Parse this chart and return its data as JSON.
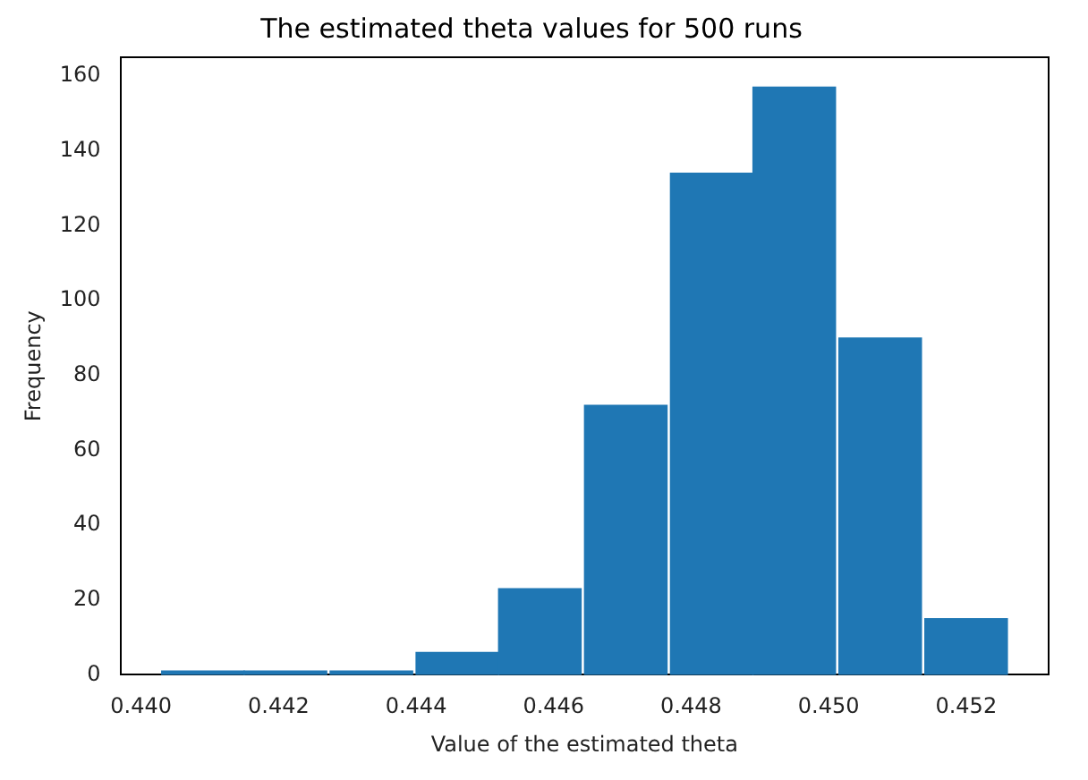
{
  "chart_data": {
    "type": "histogram",
    "title": "The estimated theta values for 500 runs",
    "xlabel": "Value of the estimated theta",
    "ylabel": "Frequency",
    "bins": [
      0.4403,
      0.4415,
      0.4427,
      0.444,
      0.4452,
      0.4464,
      0.4477,
      0.4489,
      0.4501,
      0.4514,
      0.4526
    ],
    "values": [
      1,
      1,
      1,
      6,
      23,
      72,
      134,
      157,
      90,
      15
    ],
    "color": "#1f77b4",
    "xlim": [
      0.4397,
      0.4532
    ],
    "xticks": [
      {
        "value": 0.44,
        "label": "0.440"
      },
      0.442,
      0.444,
      0.446,
      0.448,
      {
        "value": 0.45,
        "label": "0.450"
      },
      0.452
    ],
    "ylim": [
      0,
      165
    ],
    "yticks": [
      0,
      20,
      40,
      60,
      80,
      100,
      120,
      140,
      160
    ],
    "grid": false,
    "legend": false
  }
}
